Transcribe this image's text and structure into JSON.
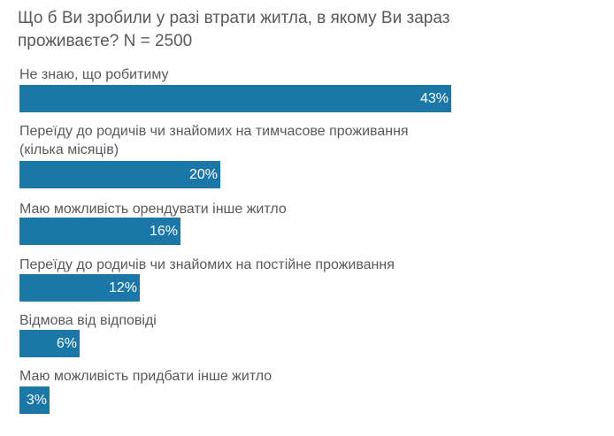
{
  "chart_data": {
    "type": "bar",
    "orientation": "horizontal",
    "title": "Що б Ви зробили у разі втрати житла, в якому Ви зараз проживаєте? N = 2500",
    "categories": [
      "Не знаю, що робитиму",
      "Переїду до родичів чи знайомих на тимчасове проживання (кілька місяців)",
      "Маю можливість орендувати інше житло",
      "Переїду до родичів чи знайомих на постійне проживання",
      "Відмова від відповіді",
      "Маю можливість придбати інше житло"
    ],
    "values": [
      43,
      20,
      16,
      12,
      6,
      3
    ],
    "value_labels": [
      "43%",
      "20%",
      "16%",
      "12%",
      "6%",
      "3%"
    ],
    "bar_color": "#1a77a8",
    "xlim": [
      0,
      100
    ],
    "grid": false,
    "legend": "none"
  }
}
